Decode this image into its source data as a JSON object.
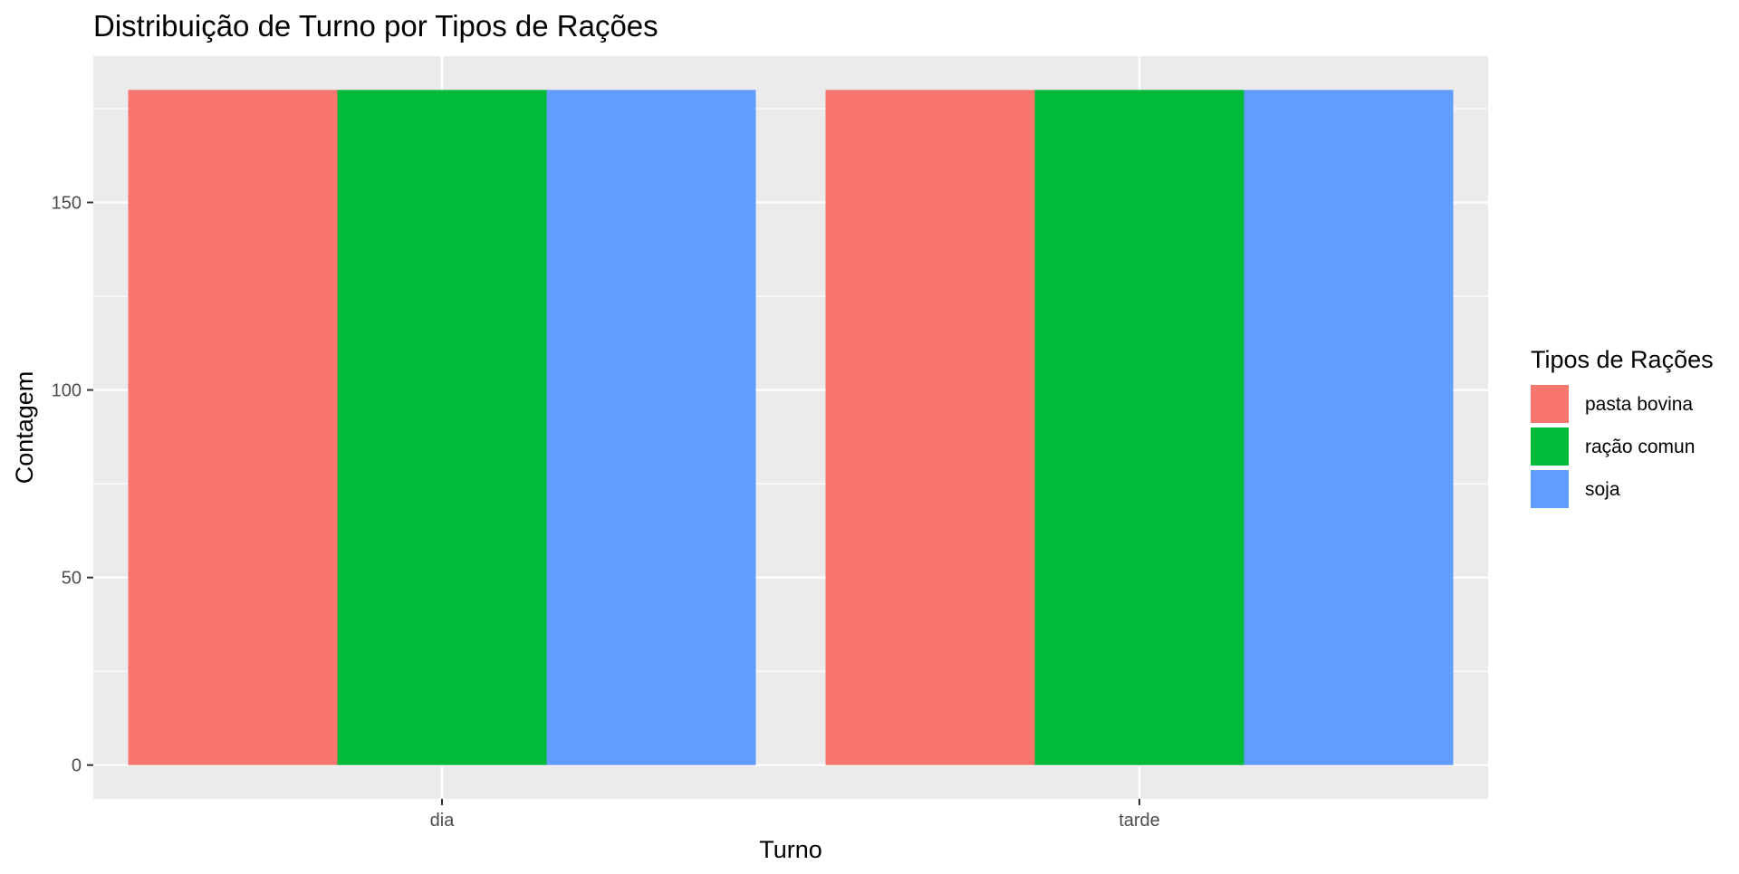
{
  "chart_data": {
    "type": "bar",
    "title": "Distribuição de Turno por Tipos de Rações",
    "xlabel": "Turno",
    "ylabel": "Contagem",
    "categories": [
      "dia",
      "tarde"
    ],
    "series": [
      {
        "name": "pasta bovina",
        "values": [
          180,
          180
        ],
        "color": "#F8766D"
      },
      {
        "name": "ração comun",
        "values": [
          180,
          180
        ],
        "color": "#00BA38"
      },
      {
        "name": "soja",
        "values": [
          180,
          180
        ],
        "color": "#619CFF"
      }
    ],
    "ylim": [
      -9,
      189
    ],
    "yticks": [
      0,
      50,
      100,
      150
    ],
    "grid": true,
    "panel_background": "#EBEBEB",
    "grid_color": "#FFFFFF",
    "legend": {
      "title": "Tipos de Rações",
      "position": "right"
    }
  }
}
